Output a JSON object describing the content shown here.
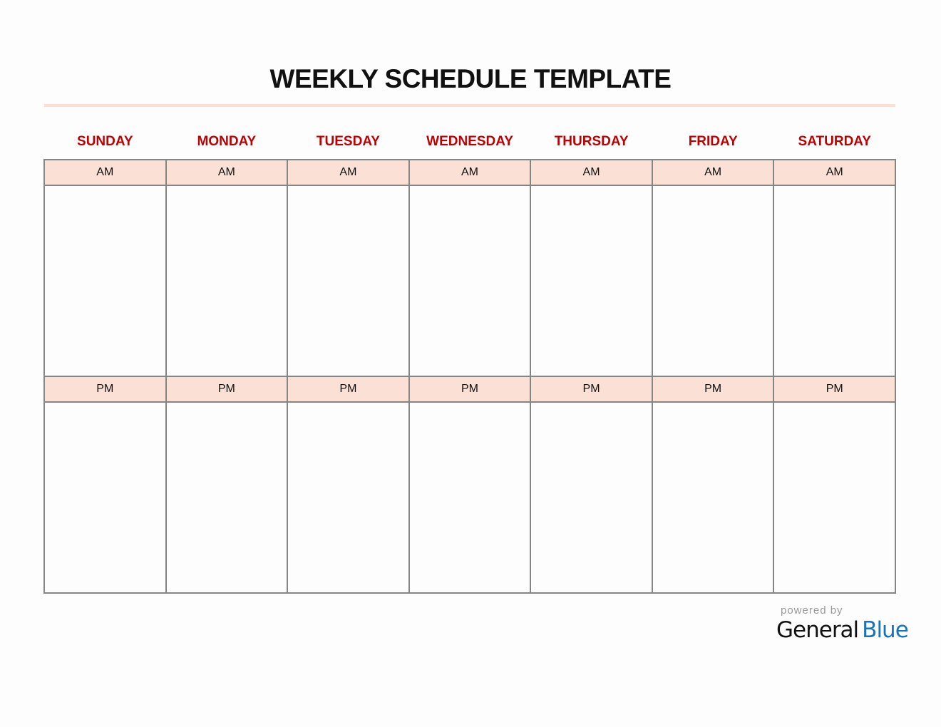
{
  "title": "WEEKLY SCHEDULE TEMPLATE",
  "days": [
    "SUNDAY",
    "MONDAY",
    "TUESDAY",
    "WEDNESDAY",
    "THURSDAY",
    "FRIDAY",
    "SATURDAY"
  ],
  "periods": [
    "AM",
    "PM"
  ],
  "footer": {
    "powered_by": "powered by",
    "brand_general": "General",
    "brand_blue": "Blue"
  },
  "colors": {
    "day_label": "#c00000",
    "header_fill": "#fbe0d5",
    "border": "#858585",
    "brand_blue": "#1a73b8"
  }
}
